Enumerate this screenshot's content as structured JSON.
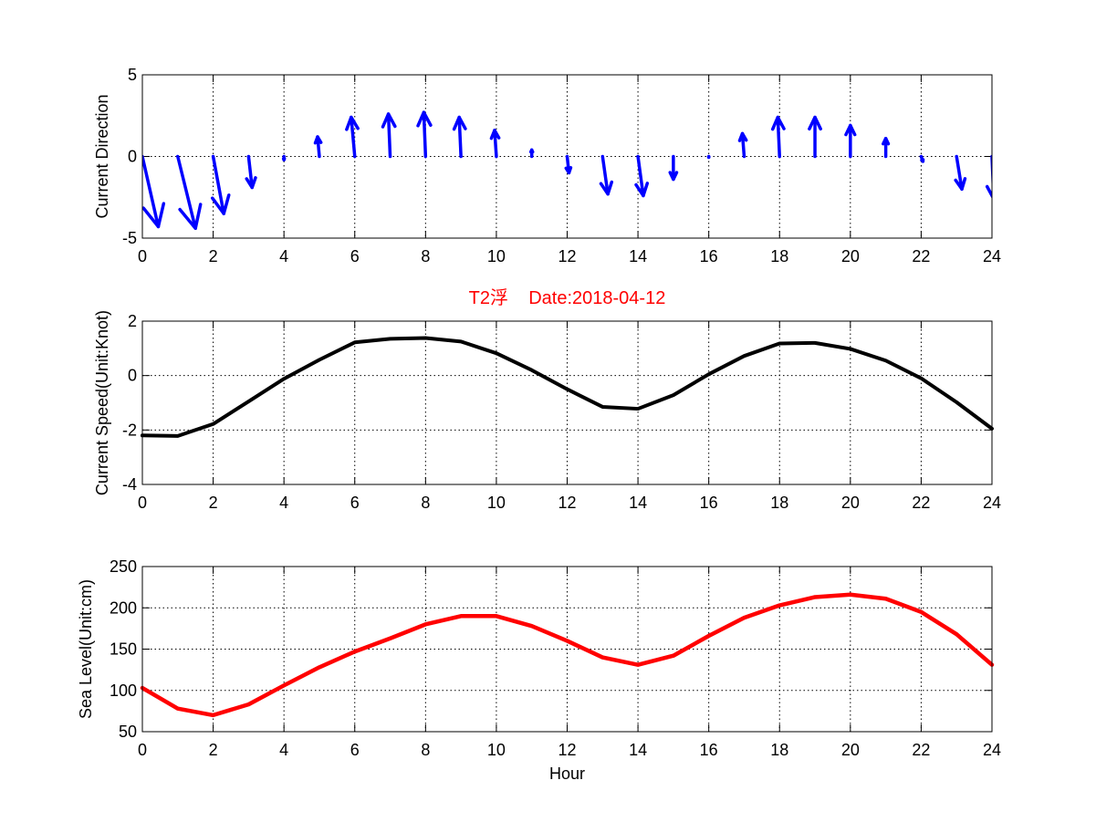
{
  "colors": {
    "direction_arrows": "#0000ff",
    "speed_line": "#000000",
    "sea_level_line": "#ff0000",
    "title": "#ff0000",
    "grid": "#000000",
    "background": "#ffffff"
  },
  "chart_data": [
    {
      "type": "line",
      "subtype": "quiver",
      "title": "",
      "xlabel": "",
      "ylabel": "Current Direction",
      "xlim": [
        0,
        24
      ],
      "ylim": [
        -5,
        5
      ],
      "xticks": [
        0,
        2,
        4,
        6,
        8,
        10,
        12,
        14,
        16,
        18,
        20,
        22,
        24
      ],
      "yticks": [
        -5,
        0,
        5
      ],
      "grid": true,
      "x": [
        0,
        1,
        2,
        3,
        4,
        5,
        6,
        7,
        8,
        9,
        10,
        11,
        12,
        13,
        14,
        15,
        16,
        17,
        18,
        19,
        20,
        21,
        22,
        23,
        24
      ],
      "u": [
        0.45,
        0.5,
        0.3,
        0.1,
        0.0,
        -0.05,
        -0.1,
        -0.05,
        -0.05,
        -0.05,
        -0.05,
        0.0,
        0.05,
        0.15,
        0.15,
        0.0,
        0.0,
        -0.05,
        -0.05,
        0.0,
        0.0,
        0.0,
        0.05,
        0.15,
        0.05
      ],
      "v": [
        -4.3,
        -4.4,
        -3.5,
        -1.9,
        -0.2,
        1.2,
        2.4,
        2.6,
        2.7,
        2.4,
        1.6,
        0.4,
        -1.0,
        -2.3,
        -2.4,
        -1.4,
        -0.05,
        1.4,
        2.4,
        2.4,
        1.9,
        1.1,
        -0.3,
        -2.0,
        -2.6
      ]
    },
    {
      "type": "line",
      "title": "T2浮    Date:2018-04-12",
      "xlabel": "",
      "ylabel": "Current Speed(Unit:Knot)",
      "xlim": [
        0,
        24
      ],
      "ylim": [
        -4,
        2
      ],
      "xticks": [
        0,
        2,
        4,
        6,
        8,
        10,
        12,
        14,
        16,
        18,
        20,
        22,
        24
      ],
      "yticks": [
        -4,
        -2,
        0,
        2
      ],
      "grid": true,
      "x": [
        0,
        1,
        2,
        3,
        4,
        5,
        6,
        7,
        8,
        9,
        10,
        11,
        12,
        13,
        14,
        15,
        16,
        17,
        18,
        19,
        20,
        21,
        22,
        23,
        24
      ],
      "y": [
        -2.2,
        -2.22,
        -1.78,
        -0.95,
        -0.12,
        0.58,
        1.22,
        1.35,
        1.38,
        1.25,
        0.82,
        0.2,
        -0.5,
        -1.15,
        -1.22,
        -0.72,
        0.05,
        0.72,
        1.18,
        1.2,
        0.98,
        0.55,
        -0.1,
        -0.98,
        -1.95
      ]
    },
    {
      "type": "line",
      "title": "",
      "xlabel": "Hour",
      "ylabel": "Sea Level(Unit:cm)",
      "xlim": [
        0,
        24
      ],
      "ylim": [
        50,
        250
      ],
      "xticks": [
        0,
        2,
        4,
        6,
        8,
        10,
        12,
        14,
        16,
        18,
        20,
        22,
        24
      ],
      "yticks": [
        50,
        100,
        150,
        200,
        250
      ],
      "grid": true,
      "x": [
        0,
        1,
        2,
        3,
        4,
        5,
        6,
        7,
        8,
        9,
        10,
        11,
        12,
        13,
        14,
        15,
        16,
        17,
        18,
        19,
        20,
        21,
        22,
        23,
        24
      ],
      "y": [
        103,
        78,
        70,
        83,
        106,
        128,
        147,
        163,
        180,
        190,
        190,
        178,
        160,
        140,
        131,
        142,
        166,
        188,
        203,
        213,
        216,
        211,
        195,
        168,
        131
      ]
    }
  ]
}
